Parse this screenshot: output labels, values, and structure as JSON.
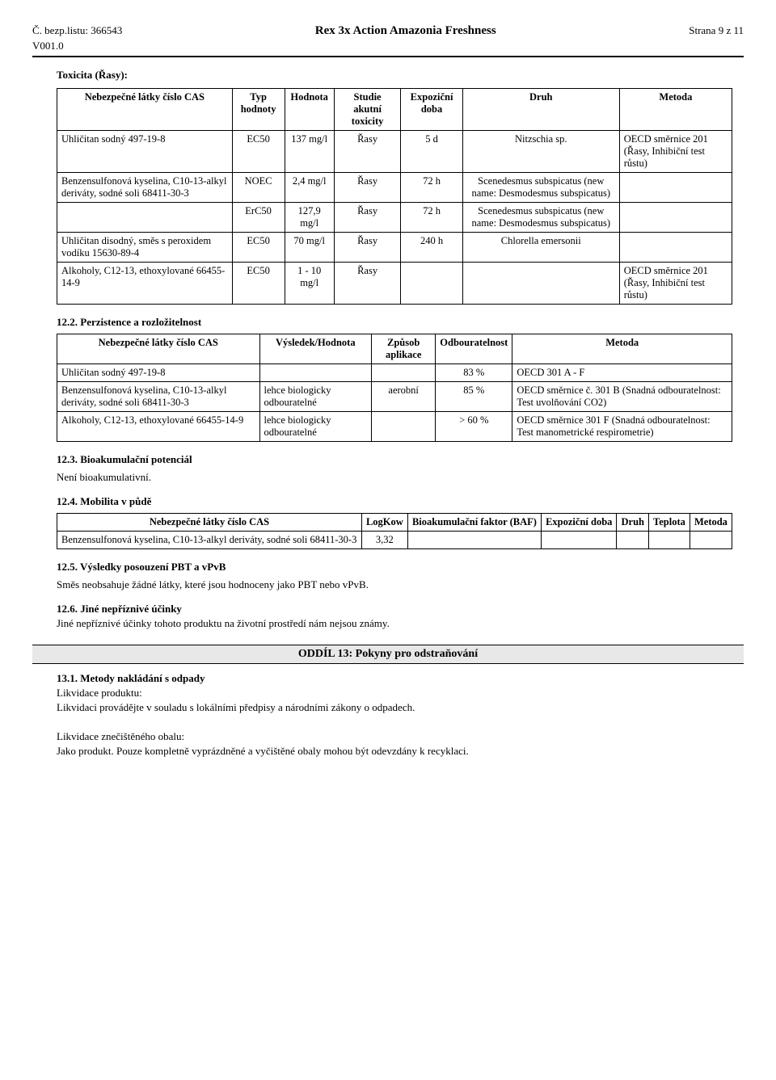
{
  "header": {
    "left_line1": "Č. bezp.listu: 366543",
    "left_line2": "V001.0",
    "center": "Rex 3x Action Amazonia Freshness",
    "right": "Strana 9 z 11"
  },
  "sec_tox_title": "Toxicita (Řasy):",
  "table_tox": {
    "headers": [
      "Nebezpečné látky\nčíslo CAS",
      "Typ hodnoty",
      "Hodnota",
      "Studie akutní toxicity",
      "Expoziční doba",
      "Druh",
      "Metoda"
    ],
    "rows": [
      [
        "Uhličitan sodný\n497-19-8",
        "EC50",
        "137 mg/l",
        "Řasy",
        "5 d",
        "Nitzschia sp.",
        "OECD směrnice 201 (Řasy, Inhibiční test růstu)"
      ],
      [
        "Benzensulfonová kyselina, C10-13-alkyl deriváty, sodné soli\n68411-30-3",
        "NOEC",
        "2,4 mg/l",
        "Řasy",
        "72 h",
        "Scenedesmus subspicatus (new name: Desmodesmus subspicatus)",
        ""
      ],
      [
        "",
        "ErC50",
        "127,9 mg/l",
        "Řasy",
        "72 h",
        "Scenedesmus subspicatus (new name: Desmodesmus subspicatus)",
        ""
      ],
      [
        "Uhličitan disodný, směs s peroxidem vodíku\n15630-89-4",
        "EC50",
        "70 mg/l",
        "Řasy",
        "240 h",
        "Chlorella emersonii",
        ""
      ],
      [
        "Alkoholy, C12-13, ethoxylované\n66455-14-9",
        "EC50",
        "1 - 10 mg/l",
        "Řasy",
        "",
        "",
        "OECD směrnice 201 (Řasy, Inhibiční test růstu)"
      ]
    ]
  },
  "sec_122": "12.2. Perzistence a rozložitelnost",
  "table_perz": {
    "headers": [
      "Nebezpečné látky\nčíslo CAS",
      "Výsledek/Hodnota",
      "Způsob aplikace",
      "Odbouratelnost",
      "Metoda"
    ],
    "rows": [
      [
        "Uhličitan sodný\n497-19-8",
        "",
        "",
        "83 %",
        "OECD 301 A - F"
      ],
      [
        "Benzensulfonová kyselina, C10-13-alkyl deriváty, sodné soli\n68411-30-3",
        "lehce biologicky odbouratelné",
        "aerobní",
        "85 %",
        "OECD směrnice č. 301 B (Snadná odbouratelnost: Test uvolňování CO2)"
      ],
      [
        "Alkoholy, C12-13, ethoxylované\n66455-14-9",
        "lehce biologicky odbouratelné",
        "",
        "> 60 %",
        "OECD směrnice 301 F (Snadná odbouratelnost: Test manometrické respirometrie)"
      ]
    ]
  },
  "sec_123": "12.3. Bioakumulační potenciál",
  "txt_123": "Není bioakumulativní.",
  "sec_124": "12.4. Mobilita v půdě",
  "table_mob": {
    "headers": [
      "Nebezpečné látky\nčíslo CAS",
      "LogKow",
      "Bioakumulační faktor (BAF)",
      "Expoziční doba",
      "Druh",
      "Teplota",
      "Metoda"
    ],
    "rows": [
      [
        "Benzensulfonová kyselina, C10-13-alkyl deriváty, sodné soli\n68411-30-3",
        "3,32",
        "",
        "",
        "",
        "",
        ""
      ]
    ]
  },
  "sec_125": "12.5. Výsledky posouzení PBT a vPvB",
  "txt_125": "Směs neobsahuje žádné látky, které jsou hodnoceny jako PBT nebo vPvB.",
  "sec_126": "12.6. Jiné nepříznivé účinky",
  "txt_126": "Jiné nepříznivé účinky tohoto produktu na životní prostředí nám nejsou známy.",
  "oddil13": "ODDÍL 13: Pokyny pro odstraňování",
  "sec_131": "13.1. Metody nakládání s odpady",
  "lbl_131a": "Likvidace produktu:",
  "txt_131a": "Likvidaci provádějte v souladu s lokálními předpisy a národními zákony o odpadech.",
  "lbl_131b": "Likvidace znečištěného obalu:",
  "txt_131b": "Jako produkt. Pouze kompletně vyprázdněné a vyčištěné obaly mohou být odevzdány k recyklaci."
}
